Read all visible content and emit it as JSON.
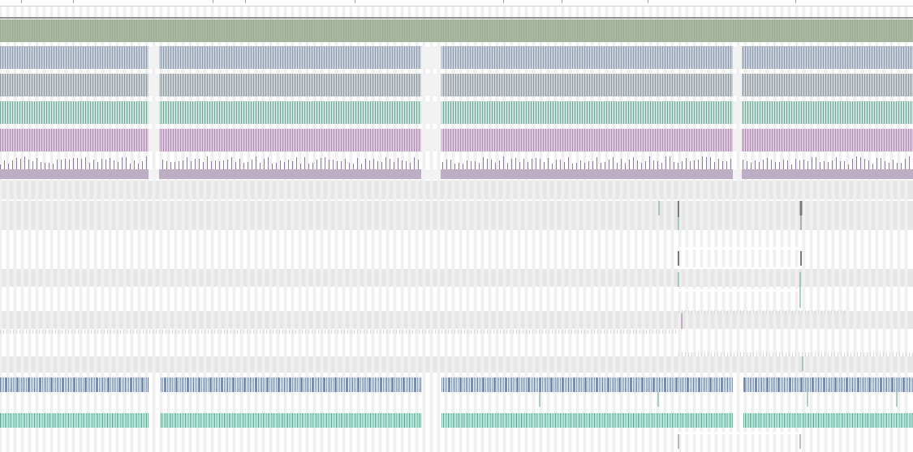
{
  "colors": {
    "background": "#ffffff",
    "lane_gray": "#e6e6e6",
    "stripe_light": "#f0f0f0",
    "ruler": "#9a9a9a",
    "separator": "#8f8f8f",
    "green_track": "#a9b9a1",
    "green_track_dark": "#93a78b",
    "blue_track": "#c7cfdb",
    "blue_track_dark": "#8e9aae",
    "slate_track": "#c9d0d3",
    "slate_track_dark": "#8f999e",
    "mint_track": "#cde3dd",
    "mint_track_dark": "#6fa896",
    "pink_track": "#dcc8dd",
    "pink_track_dark": "#b08db4",
    "mauve_track": "#bdaec6",
    "mauve_tick": "#8d7b99",
    "blue_dense": "#8595ad",
    "blue_dense_dark": "#54698c",
    "teal_dense": "#7fb5a5",
    "teal_dense_dark": "#4f917e",
    "marker_green": "#5fa87d",
    "marker_gray": "#7a7a7a",
    "marker_purple": "#9b6b9e"
  },
  "icons": [],
  "tracks": [
    {
      "name": "green-track"
    },
    {
      "name": "blue-track"
    },
    {
      "name": "slate-track"
    },
    {
      "name": "mint-track"
    },
    {
      "name": "pink-track"
    },
    {
      "name": "mauve-track"
    },
    {
      "name": "blue-dense-track"
    },
    {
      "name": "teal-dense-track"
    }
  ]
}
